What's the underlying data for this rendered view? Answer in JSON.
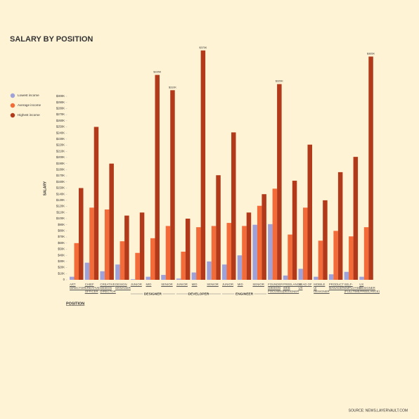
{
  "chart_data": {
    "type": "bar",
    "title": "SALARY BY POSITION",
    "y_label": "SALARY",
    "x_label": "POSITION",
    "source": "SOURCE: NEWS.LAYERVAULT.COM",
    "categories": [
      "ART DIRECTOR",
      "CHIEF CREATIVE OFFICER",
      "CREATIVE DESIGN DIRECTOR",
      "DESIGN MANAGER",
      "JUNIOR",
      "MID",
      "SENIOR",
      "JUNIOR",
      "MID",
      "SENIOR",
      "JUNIOR",
      "MID",
      "SENIOR",
      "FOUNDER (DESIGN FOCUSED)",
      "FREELANCE WEB DESIGNER",
      "HEAD OF UX",
      "MOBILE UI DESIGNER",
      "PRODUCT MANAGER",
      "SELF-EMPLOYED (FULLTIME/FREELANCE)",
      "UX DESIGNER"
    ],
    "groups": [
      "DESIGNER",
      "DEVELOPER",
      "ENGINEER"
    ],
    "series": [
      {
        "name": "Lowest income",
        "color": "#9ea2d8",
        "values": [
          5,
          28,
          14,
          25,
          1,
          5,
          8,
          2,
          12,
          30,
          25,
          40,
          90,
          91,
          7,
          18,
          5,
          9,
          13,
          5
        ]
      },
      {
        "name": "Average income",
        "color": "#f26b38",
        "values": [
          60,
          118,
          115,
          63,
          44,
          68,
          88,
          46,
          86,
          88,
          93,
          88,
          121,
          149,
          74,
          118,
          64,
          80,
          71,
          86
        ]
      },
      {
        "name": "Highest income",
        "color": "#b23a1a",
        "values": [
          150,
          250,
          190,
          105,
          110,
          335,
          310,
          100,
          375,
          171,
          241,
          110,
          140,
          320,
          162,
          221,
          130,
          176,
          201,
          365
        ],
        "value_labels": [
          null,
          null,
          null,
          null,
          null,
          "$335K",
          "$310K",
          null,
          "$375K",
          null,
          null,
          null,
          null,
          "$320K",
          null,
          null,
          null,
          null,
          null,
          "$365K"
        ]
      }
    ],
    "ylim": [
      0,
      300
    ],
    "yticks": [
      0,
      {
        "value": 10,
        "label": "$10K"
      },
      {
        "value": 20,
        "label": "$20K"
      },
      {
        "value": 30,
        "label": "$30K"
      },
      {
        "value": 40,
        "label": "$40K"
      },
      {
        "value": 50,
        "label": "$50K"
      },
      {
        "value": 60,
        "label": "$60K"
      },
      {
        "value": 70,
        "label": "$70K"
      },
      {
        "value": 80,
        "label": "$80K"
      },
      {
        "value": 90,
        "label": "$90K"
      },
      {
        "value": 100,
        "label": "$100K"
      },
      {
        "value": 110,
        "label": "$110K"
      },
      {
        "value": 120,
        "label": "$120K"
      },
      {
        "value": 130,
        "label": "$130K"
      },
      {
        "value": 140,
        "label": "$140K"
      },
      {
        "value": 150,
        "label": "$150K"
      },
      {
        "value": 160,
        "label": "$160K"
      },
      {
        "value": 170,
        "label": "$170K"
      },
      {
        "value": 180,
        "label": "$180K"
      },
      {
        "value": 190,
        "label": "$190K"
      },
      {
        "value": 200,
        "label": "$200K"
      },
      {
        "value": 210,
        "label": "$210K"
      },
      {
        "value": 220,
        "label": "$220K"
      },
      {
        "value": 230,
        "label": "$230K"
      },
      {
        "value": 240,
        "label": "$240K"
      },
      {
        "value": 250,
        "label": "$250K"
      },
      {
        "value": 260,
        "label": "$260K"
      },
      {
        "value": 270,
        "label": "$270K"
      },
      {
        "value": 280,
        "label": "$280K"
      },
      {
        "value": 290,
        "label": "$290K"
      },
      {
        "value": 300,
        "label": "$300K"
      }
    ]
  }
}
